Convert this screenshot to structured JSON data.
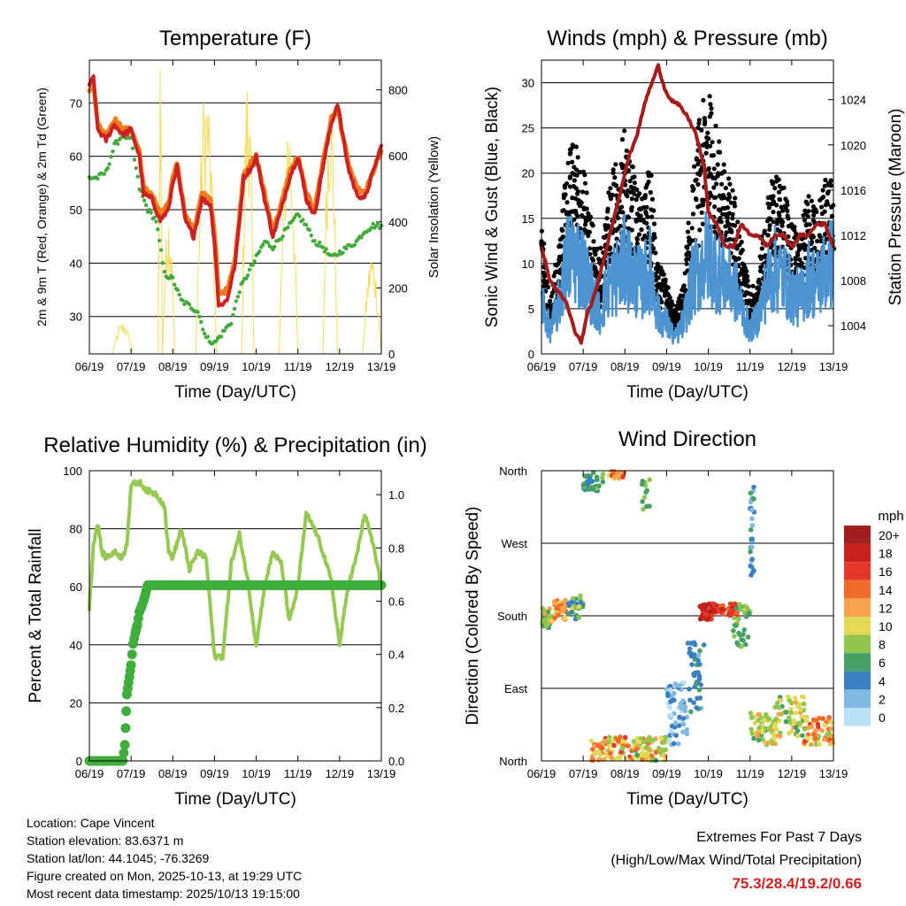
{
  "x_ticks": [
    "06/19",
    "07/19",
    "08/19",
    "09/19",
    "10/19",
    "11/19",
    "12/19",
    "13/19"
  ],
  "xlabel": "Time (Day/UTC)",
  "chart_data": [
    {
      "id": "temperature",
      "type": "line",
      "title": "Temperature (F)",
      "ylabel_left": "2m & 9m T (Red, Orange) & 2m Td (Green)",
      "ylabel_right": "Solar Insolation (Yellow)",
      "ylim": [
        23,
        78
      ],
      "yticks": [
        30,
        40,
        50,
        60,
        70
      ],
      "ylim_right": [
        0,
        890
      ],
      "yticks_right": [
        0,
        200,
        400,
        600,
        800
      ],
      "xrange_days": [
        6,
        13
      ],
      "series": [
        {
          "name": "2m T",
          "color": "#cc2222",
          "x": [
            6.0,
            6.1,
            6.2,
            6.4,
            6.6,
            6.8,
            7.0,
            7.2,
            7.3,
            7.5,
            7.7,
            7.9,
            8.0,
            8.1,
            8.3,
            8.5,
            8.7,
            8.9,
            9.0,
            9.1,
            9.3,
            9.5,
            9.7,
            9.9,
            10.0,
            10.2,
            10.4,
            10.6,
            10.8,
            11.0,
            11.2,
            11.4,
            11.6,
            11.8,
            11.95,
            12.2,
            12.4,
            12.6,
            12.8,
            13.0
          ],
          "y": [
            73,
            75,
            65,
            63,
            66,
            64,
            65,
            60,
            53,
            52,
            48,
            50,
            55,
            58,
            48,
            45,
            52,
            51,
            44,
            32,
            33,
            40,
            56,
            58,
            60,
            52,
            45,
            50,
            56,
            60,
            52,
            49,
            58,
            66,
            70,
            58,
            53,
            52,
            57,
            62
          ]
        },
        {
          "name": "9m T",
          "color": "#f07a1e",
          "x": [
            6.0,
            6.1,
            6.2,
            6.4,
            6.6,
            6.8,
            7.0,
            7.2,
            7.3,
            7.5,
            7.7,
            7.9,
            8.0,
            8.1,
            8.3,
            8.5,
            8.7,
            8.9,
            9.0,
            9.1,
            9.3,
            9.5,
            9.7,
            9.9,
            10.0,
            10.2,
            10.4,
            10.6,
            10.8,
            11.0,
            11.2,
            11.4,
            11.6,
            11.8,
            11.95,
            12.2,
            12.4,
            12.6,
            12.8,
            13.0
          ],
          "y": [
            72,
            74,
            66,
            64,
            67,
            65,
            65,
            61,
            54,
            53,
            49,
            51,
            56,
            59,
            49,
            46,
            53,
            52,
            46,
            34,
            35,
            41,
            57,
            59,
            60,
            53,
            46,
            51,
            57,
            60,
            53,
            50,
            59,
            67,
            69,
            59,
            54,
            53,
            57,
            61
          ]
        },
        {
          "name": "2m Td",
          "color": "#44aa3c",
          "x": [
            6.0,
            6.2,
            6.4,
            6.6,
            6.8,
            7.0,
            7.2,
            7.4,
            7.6,
            7.8,
            8.0,
            8.2,
            8.4,
            8.6,
            8.8,
            9.0,
            9.2,
            9.4,
            9.6,
            9.8,
            10.0,
            10.2,
            10.4,
            10.6,
            10.8,
            11.0,
            11.2,
            11.4,
            11.6,
            11.8,
            12.0,
            12.2,
            12.4,
            12.6,
            12.8,
            13.0
          ],
          "y": [
            56,
            56,
            57,
            62,
            64,
            63,
            54,
            50,
            48,
            38,
            37,
            33,
            32,
            31,
            26,
            25,
            27,
            29,
            35,
            38,
            41,
            44,
            43,
            45,
            47,
            49,
            47,
            44,
            43,
            41,
            42,
            43,
            44,
            46,
            47,
            47
          ]
        },
        {
          "name": "Solar Insolation",
          "color": "#f5dc5a",
          "axis": "right",
          "pulses": [
            [
              6.55,
              7.05,
              100
            ],
            [
              7.65,
              7.75,
              880
            ],
            [
              7.75,
              8.05,
              450
            ],
            [
              8.55,
              9.05,
              860
            ],
            [
              9.65,
              9.95,
              880
            ],
            [
              10.55,
              11.0,
              760
            ],
            [
              11.6,
              11.95,
              850
            ],
            [
              12.55,
              13.0,
              320
            ]
          ]
        }
      ]
    },
    {
      "id": "winds",
      "type": "scatter",
      "title": "Winds (mph) & Pressure (mb)",
      "ylabel_left": "Sonic Wind & Gust (Blue, Black)",
      "ylabel_right": "Station Pressure (Maroon)",
      "ylim": [
        0,
        32.5
      ],
      "yticks": [
        0,
        5,
        10,
        15,
        20,
        25,
        30
      ],
      "ylim_right": [
        1001.5,
        1027.5
      ],
      "yticks_right": [
        1004,
        1008,
        1012,
        1016,
        1020,
        1024
      ],
      "xrange_days": [
        6,
        13
      ],
      "series": [
        {
          "name": "Sonic Wind",
          "color": "#4d93d0",
          "x": [
            6.0,
            6.2,
            6.4,
            6.6,
            6.8,
            7.0,
            7.2,
            7.4,
            7.6,
            7.8,
            8.0,
            8.2,
            8.4,
            8.6,
            8.8,
            9.0,
            9.2,
            9.4,
            9.6,
            9.8,
            10.0,
            10.2,
            10.4,
            10.6,
            10.8,
            11.0,
            11.2,
            11.4,
            11.6,
            11.8,
            12.0,
            12.2,
            12.4,
            12.6,
            12.8,
            13.0
          ],
          "y": [
            7,
            3,
            6,
            12,
            13,
            11,
            8,
            5,
            9,
            10,
            12,
            10,
            9,
            11,
            5,
            4,
            2,
            4,
            9,
            11,
            13,
            11,
            10,
            9,
            6,
            3,
            5,
            9,
            11,
            10,
            8,
            7,
            10,
            9,
            11,
            12
          ]
        },
        {
          "name": "Gust",
          "color": "#000000",
          "x": [
            6.0,
            6.2,
            6.4,
            6.6,
            6.8,
            7.0,
            7.2,
            7.4,
            7.6,
            7.8,
            8.0,
            8.2,
            8.4,
            8.6,
            8.8,
            9.0,
            9.2,
            9.4,
            9.6,
            9.8,
            10.0,
            10.2,
            10.4,
            10.6,
            10.8,
            11.0,
            11.2,
            11.4,
            11.6,
            11.8,
            12.0,
            12.2,
            12.4,
            12.6,
            12.8,
            13.0
          ],
          "y": [
            14,
            5,
            10,
            19,
            21,
            18,
            13,
            9,
            16,
            19,
            22,
            18,
            15,
            18,
            9,
            7,
            4,
            7,
            15,
            23,
            26,
            22,
            18,
            16,
            11,
            6,
            8,
            15,
            18,
            16,
            13,
            11,
            16,
            14,
            17,
            20
          ]
        },
        {
          "name": "Station Pressure",
          "color": "#a61c1c",
          "axis": "right",
          "x": [
            6.0,
            6.2,
            6.4,
            6.6,
            6.8,
            6.95,
            7.1,
            7.3,
            7.5,
            7.7,
            7.9,
            8.1,
            8.3,
            8.5,
            8.7,
            8.8,
            8.95,
            9.1,
            9.3,
            9.5,
            9.7,
            9.9,
            10.0,
            10.2,
            10.4,
            10.6,
            10.8,
            11.0,
            11.2,
            11.4,
            11.6,
            11.8,
            12.0,
            12.2,
            12.4,
            12.6,
            12.8,
            13.0
          ],
          "y": [
            1011,
            1008,
            1007,
            1006,
            1003.5,
            1002.5,
            1005,
            1007,
            1010,
            1013,
            1016,
            1019,
            1021,
            1024,
            1026,
            1027,
            1025,
            1024,
            1023.5,
            1022.5,
            1021,
            1018,
            1014,
            1013,
            1011,
            1011,
            1013,
            1012,
            1012,
            1011,
            1012,
            1012,
            1011,
            1012,
            1012,
            1013,
            1013,
            1011
          ]
        }
      ]
    },
    {
      "id": "humidity",
      "type": "line",
      "title": "Relative Humidity (%) & Precipitation (in)",
      "ylabel_left": "Percent & Total Rainfall",
      "ylim": [
        0,
        100
      ],
      "yticks": [
        0,
        20,
        40,
        60,
        80,
        100
      ],
      "ylim_right": [
        0,
        1.09
      ],
      "yticks_right": [
        "0.0",
        "0.2",
        "0.4",
        "0.6",
        "0.8",
        "1.0"
      ],
      "xrange_days": [
        6,
        13
      ],
      "series": [
        {
          "name": "Relative Humidity",
          "color": "#97c952",
          "x": [
            6.0,
            6.1,
            6.2,
            6.3,
            6.4,
            6.6,
            6.8,
            6.9,
            7.0,
            7.2,
            7.4,
            7.6,
            7.8,
            7.9,
            8.0,
            8.2,
            8.4,
            8.6,
            8.8,
            9.0,
            9.2,
            9.4,
            9.6,
            9.8,
            10.0,
            10.2,
            10.4,
            10.6,
            10.8,
            11.0,
            11.2,
            11.4,
            11.6,
            11.8,
            12.0,
            12.2,
            12.4,
            12.6,
            12.8,
            13.0
          ],
          "y": [
            53,
            75,
            82,
            72,
            70,
            72,
            70,
            75,
            95,
            96,
            93,
            92,
            88,
            72,
            70,
            80,
            66,
            72,
            70,
            36,
            36,
            68,
            78,
            62,
            40,
            60,
            72,
            68,
            48,
            60,
            85,
            80,
            72,
            62,
            40,
            60,
            70,
            85,
            75,
            60
          ]
        },
        {
          "name": "Total Precipitation",
          "color": "#3fae3c",
          "axis": "right",
          "x": [
            6.0,
            6.3,
            6.6,
            6.8,
            6.85,
            6.9,
            7.0,
            7.05,
            7.1,
            7.15,
            7.2,
            7.3,
            7.4,
            7.5,
            13.0
          ],
          "y": [
            0,
            0,
            0,
            0,
            0.06,
            0.25,
            0.36,
            0.44,
            0.48,
            0.51,
            0.56,
            0.6,
            0.66,
            0.66,
            0.66
          ]
        }
      ]
    },
    {
      "id": "direction",
      "type": "scatter",
      "title": "Wind Direction",
      "ylabel_left": "Direction (Colored By Speed)",
      "ytick_labels": [
        "North",
        "East",
        "South",
        "West",
        "North"
      ],
      "ylim": [
        0,
        360
      ],
      "xrange_days": [
        6,
        13
      ],
      "legend_title": "mph",
      "legend_labels": [
        "20+",
        "18",
        "16",
        "14",
        "12",
        "10",
        "8",
        "6",
        "4",
        "2",
        "0"
      ],
      "legend_colors": [
        "#a21d1d",
        "#c8201f",
        "#e4392a",
        "#f16a2a",
        "#f6a24b",
        "#e3d957",
        "#8fc64e",
        "#45a065",
        "#3a80c0",
        "#82b9e3",
        "#b9e0f7"
      ],
      "clusters": [
        {
          "x": [
            6.0,
            6.3
          ],
          "dir": [
            165,
            190
          ],
          "speed": [
            6,
            12
          ],
          "n": 45
        },
        {
          "x": [
            6.3,
            6.6
          ],
          "dir": [
            175,
            200
          ],
          "speed": [
            10,
            14
          ],
          "n": 40
        },
        {
          "x": [
            6.6,
            7.0
          ],
          "dir": [
            175,
            205
          ],
          "speed": [
            4,
            10
          ],
          "n": 25
        },
        {
          "x": [
            7.0,
            7.5
          ],
          "dir": [
            335,
            360
          ],
          "speed": [
            4,
            8
          ],
          "n": 40
        },
        {
          "x": [
            7.6,
            8.0
          ],
          "dir": [
            350,
            360
          ],
          "speed": [
            10,
            16
          ],
          "n": 15
        },
        {
          "x": [
            8.4,
            8.6
          ],
          "dir": [
            310,
            350
          ],
          "speed": [
            5,
            8
          ],
          "n": 12
        },
        {
          "x": [
            7.2,
            8.2
          ],
          "dir": [
            0,
            30
          ],
          "speed": [
            8,
            16
          ],
          "n": 80
        },
        {
          "x": [
            8.2,
            9.0
          ],
          "dir": [
            0,
            30
          ],
          "speed": [
            6,
            14
          ],
          "n": 70
        },
        {
          "x": [
            9.0,
            9.5
          ],
          "dir": [
            20,
            100
          ],
          "speed": [
            0,
            4
          ],
          "n": 60
        },
        {
          "x": [
            9.5,
            9.9
          ],
          "dir": [
            60,
            150
          ],
          "speed": [
            2,
            6
          ],
          "n": 40
        },
        {
          "x": [
            9.8,
            10.2
          ],
          "dir": [
            175,
            195
          ],
          "speed": [
            14,
            20
          ],
          "n": 50
        },
        {
          "x": [
            10.2,
            10.7
          ],
          "dir": [
            180,
            195
          ],
          "speed": [
            14,
            18
          ],
          "n": 35
        },
        {
          "x": [
            10.6,
            11.0
          ],
          "dir": [
            140,
            195
          ],
          "speed": [
            5,
            8
          ],
          "n": 35
        },
        {
          "x": [
            11.0,
            11.1
          ],
          "dir": [
            230,
            340
          ],
          "speed": [
            2,
            6
          ],
          "n": 30
        },
        {
          "x": [
            11.0,
            11.6
          ],
          "dir": [
            20,
            60
          ],
          "speed": [
            6,
            12
          ],
          "n": 55
        },
        {
          "x": [
            11.6,
            12.3
          ],
          "dir": [
            30,
            80
          ],
          "speed": [
            6,
            12
          ],
          "n": 60
        },
        {
          "x": [
            12.3,
            13.0
          ],
          "dir": [
            20,
            55
          ],
          "speed": [
            8,
            16
          ],
          "n": 55
        }
      ]
    }
  ],
  "info": {
    "location": "Location: Cape Vincent",
    "elevation": "Station elevation: 83.6371 m",
    "latlon": "Station lat/lon: 44.1045; -76.3269",
    "created": "Figure created on Mon, 2025-10-13, at 19:29 UTC",
    "recent": "Most recent data timestamp: 2025/10/13 19:15:00"
  },
  "extremes": {
    "title": "Extremes For Past 7 Days",
    "subtitle": "(High/Low/Max Wind/Total Precipitation)",
    "values": "75.3/28.4/19.2/0.66",
    "value_color": "#cc2222"
  }
}
